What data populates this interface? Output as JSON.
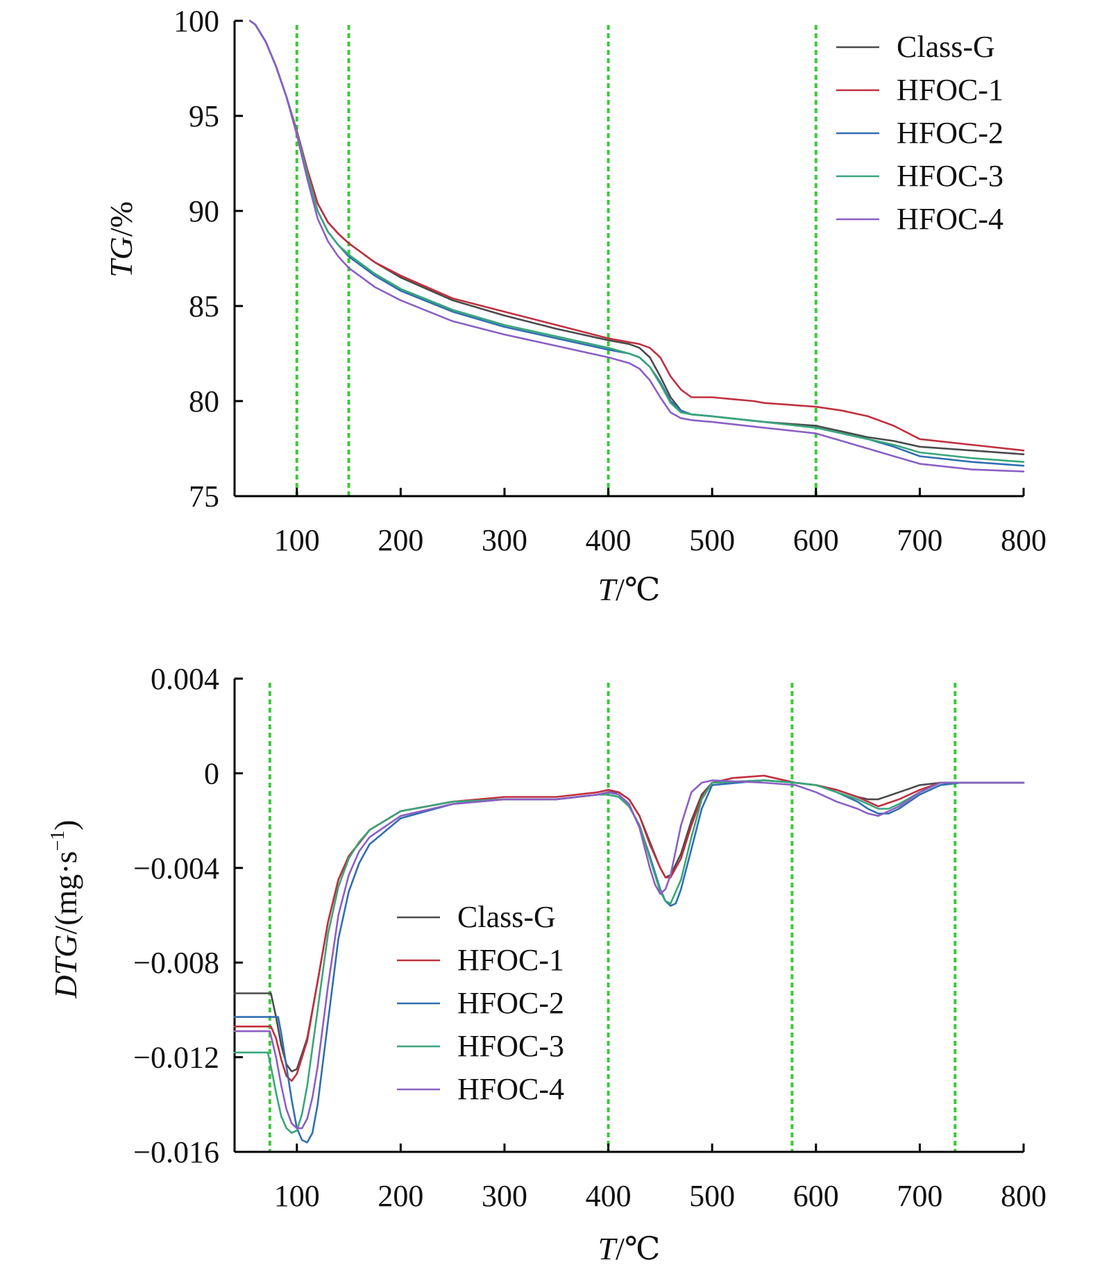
{
  "colors": {
    "Class-G": "#4a4a4a",
    "HFOC-1": "#c0303f",
    "HFOC-2": "#2f6fb0",
    "HFOC-3": "#3aa57a",
    "HFOC-4": "#8a5fc4",
    "guide": "#3cc83c"
  },
  "chart_data": [
    {
      "type": "line",
      "ylabel_main": "TG",
      "ylabel_unit": "/%",
      "xlabel_main": "T",
      "xlabel_unit": "/℃",
      "xlim": [
        40,
        800
      ],
      "ylim": [
        75,
        100
      ],
      "xticks": [
        100,
        200,
        300,
        400,
        500,
        600,
        700,
        800
      ],
      "yticks": [
        75,
        80,
        85,
        90,
        95,
        100
      ],
      "legend_position": "top-right",
      "grid": false,
      "guides_x": [
        100,
        150,
        400,
        600
      ],
      "series": [
        {
          "name": "Class-G",
          "x": [
            55,
            60,
            70,
            80,
            90,
            100,
            110,
            120,
            130,
            140,
            150,
            175,
            200,
            250,
            300,
            350,
            400,
            420,
            430,
            440,
            450,
            460,
            470,
            480,
            500,
            550,
            600,
            625,
            650,
            675,
            700,
            750,
            800
          ],
          "y": [
            100,
            99.8,
            98.9,
            97.6,
            96,
            94.2,
            92.2,
            90.4,
            89.4,
            88.8,
            88.3,
            87.3,
            86.5,
            85.3,
            84.5,
            83.8,
            83.2,
            83,
            82.8,
            82.3,
            81.3,
            80.2,
            79.5,
            79.3,
            79.2,
            78.9,
            78.7,
            78.4,
            78.1,
            77.9,
            77.6,
            77.4,
            77.2
          ]
        },
        {
          "name": "HFOC-1",
          "x": [
            55,
            60,
            70,
            80,
            90,
            100,
            110,
            120,
            130,
            140,
            150,
            175,
            200,
            250,
            300,
            350,
            400,
            420,
            430,
            440,
            450,
            460,
            470,
            480,
            500,
            520,
            540,
            550,
            600,
            625,
            650,
            675,
            700,
            750,
            800
          ],
          "y": [
            100,
            99.8,
            98.9,
            97.6,
            96,
            94.2,
            92.2,
            90.4,
            89.4,
            88.8,
            88.3,
            87.3,
            86.6,
            85.4,
            84.7,
            84,
            83.3,
            83.1,
            83,
            82.8,
            82.3,
            81.3,
            80.6,
            80.2,
            80.2,
            80.1,
            80.0,
            79.9,
            79.7,
            79.5,
            79.2,
            78.7,
            78.0,
            77.7,
            77.4
          ]
        },
        {
          "name": "HFOC-2",
          "x": [
            55,
            60,
            70,
            80,
            90,
            100,
            110,
            120,
            130,
            140,
            150,
            175,
            200,
            250,
            300,
            350,
            400,
            420,
            430,
            440,
            450,
            460,
            470,
            480,
            500,
            550,
            600,
            625,
            650,
            675,
            700,
            750,
            800
          ],
          "y": [
            100,
            99.8,
            98.9,
            97.6,
            96,
            94.1,
            92.0,
            90.0,
            88.9,
            88.2,
            87.6,
            86.6,
            85.8,
            84.7,
            83.9,
            83.3,
            82.7,
            82.5,
            82.3,
            81.8,
            81.0,
            80.0,
            79.5,
            79.3,
            79.2,
            78.9,
            78.6,
            78.3,
            78.0,
            77.6,
            77.1,
            76.8,
            76.6
          ]
        },
        {
          "name": "HFOC-3",
          "x": [
            55,
            60,
            70,
            80,
            90,
            100,
            110,
            120,
            130,
            140,
            150,
            175,
            200,
            250,
            300,
            350,
            400,
            420,
            430,
            440,
            450,
            460,
            470,
            480,
            500,
            550,
            600,
            625,
            650,
            675,
            700,
            750,
            800
          ],
          "y": [
            100,
            99.8,
            98.9,
            97.6,
            96,
            94.1,
            92.0,
            90.0,
            88.9,
            88.2,
            87.7,
            86.7,
            85.9,
            84.8,
            84.0,
            83.4,
            82.8,
            82.5,
            82.3,
            81.8,
            80.9,
            79.9,
            79.4,
            79.3,
            79.2,
            78.9,
            78.6,
            78.3,
            78.0,
            77.7,
            77.3,
            77.0,
            76.8
          ]
        },
        {
          "name": "HFOC-4",
          "x": [
            55,
            60,
            70,
            80,
            90,
            100,
            110,
            120,
            130,
            140,
            150,
            175,
            200,
            250,
            300,
            350,
            400,
            420,
            430,
            440,
            450,
            460,
            470,
            480,
            500,
            550,
            600,
            625,
            650,
            675,
            700,
            750,
            800
          ],
          "y": [
            100,
            99.8,
            98.9,
            97.6,
            96,
            94.0,
            91.7,
            89.6,
            88.4,
            87.6,
            87.0,
            86.0,
            85.3,
            84.2,
            83.5,
            82.9,
            82.3,
            82.0,
            81.7,
            81.1,
            80.2,
            79.4,
            79.1,
            79.0,
            78.9,
            78.6,
            78.3,
            77.9,
            77.5,
            77.1,
            76.7,
            76.4,
            76.3
          ]
        }
      ]
    },
    {
      "type": "line",
      "ylabel_main": "DTG",
      "ylabel_unit": "/(mg·s",
      "ylabel_sup": "−1",
      "ylabel_close": ")",
      "xlabel_main": "T",
      "xlabel_unit": "/℃",
      "xlim": [
        40,
        800
      ],
      "ylim": [
        -0.016,
        0.004
      ],
      "xticks": [
        100,
        200,
        300,
        400,
        500,
        600,
        700,
        800
      ],
      "yticks": [
        0.004,
        0,
        -0.004,
        -0.008,
        -0.012,
        -0.016
      ],
      "ytick_labels": [
        "0.004",
        "0",
        "−0.004",
        "−0.008",
        "−0.012",
        "−0.016"
      ],
      "legend_position": "lower-left",
      "grid": false,
      "guides_x": [
        74,
        400,
        577,
        734
      ],
      "series": [
        {
          "name": "Class-G",
          "x": [
            40,
            75,
            80,
            85,
            90,
            95,
            100,
            110,
            120,
            130,
            140,
            150,
            170,
            200,
            250,
            300,
            350,
            390,
            400,
            410,
            420,
            430,
            440,
            450,
            455,
            460,
            470,
            480,
            490,
            500,
            550,
            580,
            600,
            620,
            640,
            650,
            660,
            680,
            700,
            720,
            740,
            800
          ],
          "y": [
            -0.0093,
            -0.0093,
            -0.0103,
            -0.0115,
            -0.0123,
            -0.0126,
            -0.0125,
            -0.0112,
            -0.0088,
            -0.0063,
            -0.0045,
            -0.0035,
            -0.0024,
            -0.0016,
            -0.0012,
            -0.0011,
            -0.0011,
            -0.0009,
            -0.0008,
            -0.0008,
            -0.0011,
            -0.0018,
            -0.0029,
            -0.004,
            -0.0044,
            -0.0043,
            -0.0034,
            -0.002,
            -0.0009,
            -0.0004,
            -0.0003,
            -0.0004,
            -0.0005,
            -0.0007,
            -0.001,
            -0.0011,
            -0.0011,
            -0.0008,
            -0.0005,
            -0.0004,
            -0.0004,
            -0.0004
          ]
        },
        {
          "name": "HFOC-1",
          "x": [
            40,
            75,
            80,
            85,
            90,
            95,
            100,
            110,
            120,
            130,
            140,
            150,
            170,
            200,
            250,
            300,
            350,
            390,
            400,
            410,
            420,
            430,
            440,
            450,
            455,
            460,
            470,
            480,
            490,
            500,
            520,
            550,
            560,
            580,
            600,
            620,
            640,
            650,
            660,
            680,
            700,
            720,
            740,
            800
          ],
          "y": [
            -0.0107,
            -0.0107,
            -0.0112,
            -0.0121,
            -0.0128,
            -0.013,
            -0.0127,
            -0.0113,
            -0.0088,
            -0.0063,
            -0.0045,
            -0.0035,
            -0.0024,
            -0.0016,
            -0.0012,
            -0.001,
            -0.001,
            -0.0008,
            -0.0007,
            -0.0008,
            -0.0011,
            -0.0018,
            -0.003,
            -0.004,
            -0.0044,
            -0.0044,
            -0.0036,
            -0.0022,
            -0.001,
            -0.0004,
            -0.0002,
            -0.0001,
            -0.0002,
            -0.0004,
            -0.0005,
            -0.0007,
            -0.001,
            -0.0012,
            -0.0014,
            -0.0011,
            -0.0007,
            -0.0004,
            -0.0004,
            -0.0004
          ]
        },
        {
          "name": "HFOC-2",
          "x": [
            40,
            82,
            85,
            90,
            95,
            100,
            105,
            110,
            115,
            120,
            130,
            140,
            150,
            160,
            170,
            200,
            250,
            300,
            350,
            390,
            400,
            410,
            420,
            430,
            440,
            450,
            455,
            460,
            465,
            470,
            480,
            490,
            500,
            550,
            580,
            600,
            620,
            640,
            650,
            660,
            670,
            680,
            700,
            720,
            740,
            800
          ],
          "y": [
            -0.0103,
            -0.0103,
            -0.011,
            -0.0124,
            -0.0138,
            -0.015,
            -0.0155,
            -0.0156,
            -0.0152,
            -0.014,
            -0.0105,
            -0.007,
            -0.005,
            -0.0038,
            -0.003,
            -0.0019,
            -0.0013,
            -0.0011,
            -0.0011,
            -0.0009,
            -0.0009,
            -0.001,
            -0.0014,
            -0.0022,
            -0.0035,
            -0.0049,
            -0.0054,
            -0.0056,
            -0.0055,
            -0.0049,
            -0.0032,
            -0.0015,
            -0.0005,
            -0.0003,
            -0.0004,
            -0.0005,
            -0.0008,
            -0.0012,
            -0.0015,
            -0.0017,
            -0.0017,
            -0.0015,
            -0.0009,
            -0.0005,
            -0.0004,
            -0.0004
          ]
        },
        {
          "name": "HFOC-3",
          "x": [
            40,
            72,
            75,
            80,
            85,
            90,
            95,
            100,
            105,
            110,
            120,
            130,
            140,
            150,
            160,
            170,
            200,
            250,
            300,
            350,
            390,
            400,
            410,
            420,
            430,
            440,
            450,
            455,
            460,
            470,
            480,
            490,
            500,
            550,
            580,
            600,
            620,
            640,
            650,
            660,
            670,
            680,
            700,
            720,
            740,
            800
          ],
          "y": [
            -0.0118,
            -0.0118,
            -0.0124,
            -0.0135,
            -0.0145,
            -0.015,
            -0.0152,
            -0.0151,
            -0.0144,
            -0.0132,
            -0.01,
            -0.0068,
            -0.0048,
            -0.0036,
            -0.0029,
            -0.0024,
            -0.0016,
            -0.0012,
            -0.0011,
            -0.0011,
            -0.0009,
            -0.0009,
            -0.001,
            -0.0014,
            -0.0022,
            -0.0036,
            -0.005,
            -0.0054,
            -0.0055,
            -0.0045,
            -0.0027,
            -0.0011,
            -0.0004,
            -0.0003,
            -0.0004,
            -0.0005,
            -0.0008,
            -0.0011,
            -0.0013,
            -0.0015,
            -0.0015,
            -0.0013,
            -0.0008,
            -0.0004,
            -0.0004,
            -0.0004
          ]
        },
        {
          "name": "HFOC-4",
          "x": [
            40,
            74,
            80,
            85,
            90,
            95,
            100,
            105,
            110,
            115,
            120,
            130,
            140,
            150,
            160,
            170,
            200,
            250,
            300,
            350,
            390,
            400,
            410,
            420,
            430,
            440,
            445,
            450,
            455,
            460,
            470,
            480,
            490,
            500,
            550,
            580,
            600,
            620,
            640,
            650,
            660,
            670,
            680,
            700,
            720,
            740,
            800
          ],
          "y": [
            -0.0109,
            -0.0109,
            -0.012,
            -0.0132,
            -0.0142,
            -0.0148,
            -0.015,
            -0.015,
            -0.0146,
            -0.0137,
            -0.0124,
            -0.009,
            -0.006,
            -0.0043,
            -0.0033,
            -0.0027,
            -0.0018,
            -0.0013,
            -0.0011,
            -0.0011,
            -0.0009,
            -0.0008,
            -0.0009,
            -0.0013,
            -0.0023,
            -0.004,
            -0.0047,
            -0.0051,
            -0.0049,
            -0.0043,
            -0.0022,
            -0.0008,
            -0.0004,
            -0.0003,
            -0.0004,
            -0.0005,
            -0.0008,
            -0.0012,
            -0.0015,
            -0.0017,
            -0.0018,
            -0.0016,
            -0.0014,
            -0.0008,
            -0.0004,
            -0.0004,
            -0.0004
          ]
        }
      ]
    }
  ]
}
